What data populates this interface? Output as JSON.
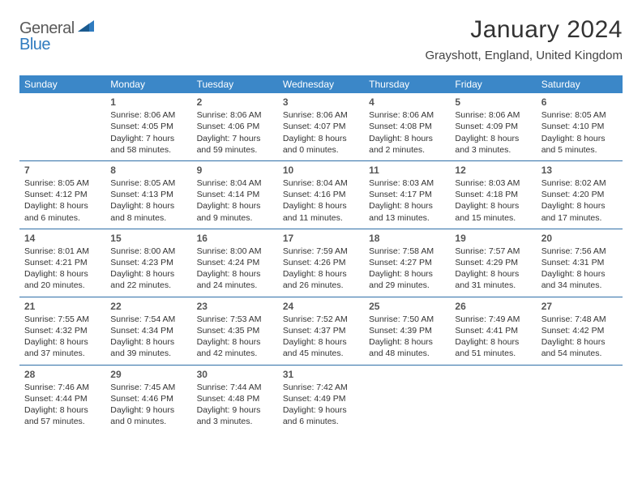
{
  "brand": {
    "part1": "General",
    "part2": "Blue"
  },
  "title": "January 2024",
  "location": "Grayshott, England, United Kingdom",
  "colors": {
    "header_bg": "#3b87c8",
    "header_text": "#ffffff",
    "row_border": "#2f6fa8",
    "text": "#333333",
    "brand_blue": "#2f7bbf",
    "brand_gray": "#5a5a5a"
  },
  "day_headers": [
    "Sunday",
    "Monday",
    "Tuesday",
    "Wednesday",
    "Thursday",
    "Friday",
    "Saturday"
  ],
  "weeks": [
    [
      null,
      {
        "n": "1",
        "sr": "8:06 AM",
        "ss": "4:05 PM",
        "d": "7 hours and 58 minutes."
      },
      {
        "n": "2",
        "sr": "8:06 AM",
        "ss": "4:06 PM",
        "d": "7 hours and 59 minutes."
      },
      {
        "n": "3",
        "sr": "8:06 AM",
        "ss": "4:07 PM",
        "d": "8 hours and 0 minutes."
      },
      {
        "n": "4",
        "sr": "8:06 AM",
        "ss": "4:08 PM",
        "d": "8 hours and 2 minutes."
      },
      {
        "n": "5",
        "sr": "8:06 AM",
        "ss": "4:09 PM",
        "d": "8 hours and 3 minutes."
      },
      {
        "n": "6",
        "sr": "8:05 AM",
        "ss": "4:10 PM",
        "d": "8 hours and 5 minutes."
      }
    ],
    [
      {
        "n": "7",
        "sr": "8:05 AM",
        "ss": "4:12 PM",
        "d": "8 hours and 6 minutes."
      },
      {
        "n": "8",
        "sr": "8:05 AM",
        "ss": "4:13 PM",
        "d": "8 hours and 8 minutes."
      },
      {
        "n": "9",
        "sr": "8:04 AM",
        "ss": "4:14 PM",
        "d": "8 hours and 9 minutes."
      },
      {
        "n": "10",
        "sr": "8:04 AM",
        "ss": "4:16 PM",
        "d": "8 hours and 11 minutes."
      },
      {
        "n": "11",
        "sr": "8:03 AM",
        "ss": "4:17 PM",
        "d": "8 hours and 13 minutes."
      },
      {
        "n": "12",
        "sr": "8:03 AM",
        "ss": "4:18 PM",
        "d": "8 hours and 15 minutes."
      },
      {
        "n": "13",
        "sr": "8:02 AM",
        "ss": "4:20 PM",
        "d": "8 hours and 17 minutes."
      }
    ],
    [
      {
        "n": "14",
        "sr": "8:01 AM",
        "ss": "4:21 PM",
        "d": "8 hours and 20 minutes."
      },
      {
        "n": "15",
        "sr": "8:00 AM",
        "ss": "4:23 PM",
        "d": "8 hours and 22 minutes."
      },
      {
        "n": "16",
        "sr": "8:00 AM",
        "ss": "4:24 PM",
        "d": "8 hours and 24 minutes."
      },
      {
        "n": "17",
        "sr": "7:59 AM",
        "ss": "4:26 PM",
        "d": "8 hours and 26 minutes."
      },
      {
        "n": "18",
        "sr": "7:58 AM",
        "ss": "4:27 PM",
        "d": "8 hours and 29 minutes."
      },
      {
        "n": "19",
        "sr": "7:57 AM",
        "ss": "4:29 PM",
        "d": "8 hours and 31 minutes."
      },
      {
        "n": "20",
        "sr": "7:56 AM",
        "ss": "4:31 PM",
        "d": "8 hours and 34 minutes."
      }
    ],
    [
      {
        "n": "21",
        "sr": "7:55 AM",
        "ss": "4:32 PM",
        "d": "8 hours and 37 minutes."
      },
      {
        "n": "22",
        "sr": "7:54 AM",
        "ss": "4:34 PM",
        "d": "8 hours and 39 minutes."
      },
      {
        "n": "23",
        "sr": "7:53 AM",
        "ss": "4:35 PM",
        "d": "8 hours and 42 minutes."
      },
      {
        "n": "24",
        "sr": "7:52 AM",
        "ss": "4:37 PM",
        "d": "8 hours and 45 minutes."
      },
      {
        "n": "25",
        "sr": "7:50 AM",
        "ss": "4:39 PM",
        "d": "8 hours and 48 minutes."
      },
      {
        "n": "26",
        "sr": "7:49 AM",
        "ss": "4:41 PM",
        "d": "8 hours and 51 minutes."
      },
      {
        "n": "27",
        "sr": "7:48 AM",
        "ss": "4:42 PM",
        "d": "8 hours and 54 minutes."
      }
    ],
    [
      {
        "n": "28",
        "sr": "7:46 AM",
        "ss": "4:44 PM",
        "d": "8 hours and 57 minutes."
      },
      {
        "n": "29",
        "sr": "7:45 AM",
        "ss": "4:46 PM",
        "d": "9 hours and 0 minutes."
      },
      {
        "n": "30",
        "sr": "7:44 AM",
        "ss": "4:48 PM",
        "d": "9 hours and 3 minutes."
      },
      {
        "n": "31",
        "sr": "7:42 AM",
        "ss": "4:49 PM",
        "d": "9 hours and 6 minutes."
      },
      null,
      null,
      null
    ]
  ],
  "labels": {
    "sunrise": "Sunrise:",
    "sunset": "Sunset:",
    "daylight": "Daylight:"
  }
}
